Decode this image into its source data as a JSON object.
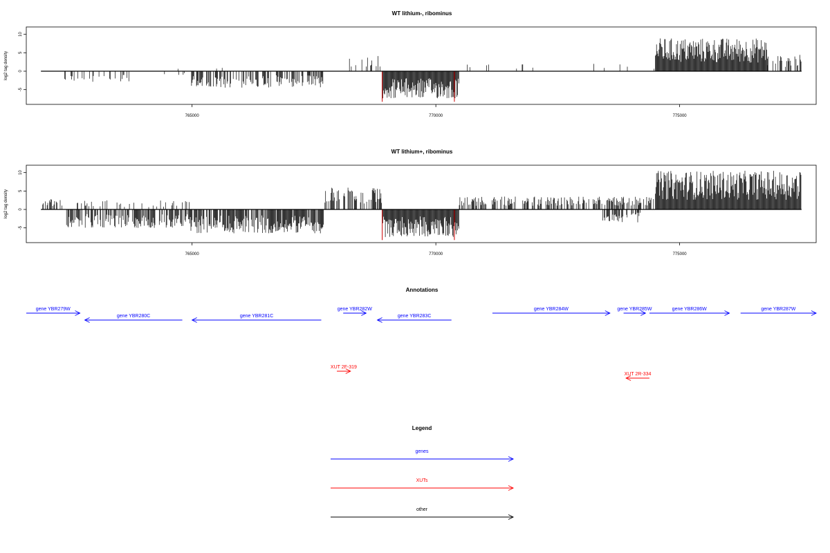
{
  "colors": {
    "gene": "#0000ff",
    "xut": "#ff0000",
    "other": "#000000",
    "bar": "#000000",
    "highlight": "#cc0000"
  },
  "chart_data": [
    {
      "type": "bar",
      "title": "WT lithium-, ribominus",
      "ylabel": "log2 tag density",
      "xlim": [
        761600,
        777800
      ],
      "ylim": [
        -9,
        12
      ],
      "yticks": [
        -5,
        0,
        5,
        10
      ],
      "xticks": [
        765000,
        770000,
        775000
      ],
      "xtick_labels": [
        "765000",
        "770000",
        "775000"
      ],
      "highlight_positions": [
        768900,
        770380
      ],
      "highlight_value": -8.3,
      "regions": [
        {
          "start": 761900,
          "end": 762400,
          "sign": 1,
          "max": 3.5,
          "density": 0.1
        },
        {
          "start": 762300,
          "end": 763800,
          "sign": -1,
          "max": 3.0,
          "density": 0.22
        },
        {
          "start": 763000,
          "end": 766000,
          "sign": 1,
          "max": 2.0,
          "density": 0.02
        },
        {
          "start": 764000,
          "end": 764900,
          "sign": -1,
          "max": 1.0,
          "density": 0.05
        },
        {
          "start": 764950,
          "end": 767700,
          "sign": -1,
          "max": 4.5,
          "density": 0.5
        },
        {
          "start": 768100,
          "end": 768900,
          "sign": 1,
          "max": 4.5,
          "density": 0.2
        },
        {
          "start": 768900,
          "end": 770480,
          "sign": -1,
          "max": 7.5,
          "density": 1.0
        },
        {
          "start": 770480,
          "end": 774500,
          "sign": 1,
          "max": 2.5,
          "density": 0.03
        },
        {
          "start": 774500,
          "end": 776800,
          "sign": 1,
          "max": 9.0,
          "density": 1.0
        },
        {
          "start": 776800,
          "end": 777500,
          "sign": 1,
          "max": 4.5,
          "density": 0.4
        }
      ]
    },
    {
      "type": "bar",
      "title": "WT lithium+, ribominus",
      "ylabel": "log2 tag density",
      "xlim": [
        761600,
        777800
      ],
      "ylim": [
        -9,
        12
      ],
      "yticks": [
        -5,
        0,
        5,
        10
      ],
      "xticks": [
        765000,
        770000,
        775000
      ],
      "xtick_labels": [
        "765000",
        "770000",
        "775000"
      ],
      "highlight_positions": [
        768900,
        770380
      ],
      "highlight_value": -8.3,
      "regions": [
        {
          "start": 761900,
          "end": 762400,
          "sign": 1,
          "max": 3.0,
          "density": 0.35
        },
        {
          "start": 762400,
          "end": 764950,
          "sign": 1,
          "max": 2.5,
          "density": 0.15
        },
        {
          "start": 762400,
          "end": 764950,
          "sign": -1,
          "max": 5.0,
          "density": 0.65
        },
        {
          "start": 764950,
          "end": 767700,
          "sign": -1,
          "max": 6.5,
          "density": 0.85
        },
        {
          "start": 767700,
          "end": 768900,
          "sign": 1,
          "max": 6.0,
          "density": 0.5
        },
        {
          "start": 768900,
          "end": 770480,
          "sign": -1,
          "max": 7.5,
          "density": 1.0
        },
        {
          "start": 770480,
          "end": 774500,
          "sign": 1,
          "max": 3.5,
          "density": 0.5
        },
        {
          "start": 773400,
          "end": 774200,
          "sign": -1,
          "max": 3.5,
          "density": 0.45
        },
        {
          "start": 774500,
          "end": 777500,
          "sign": 1,
          "max": 10.5,
          "density": 1.0
        }
      ]
    }
  ],
  "annotations": {
    "title": "Annotations",
    "items": [
      {
        "label": "gene YBR279W",
        "type": "gene",
        "start": 761600,
        "end": 762700,
        "row": 0
      },
      {
        "label": "gene YBR280C",
        "type": "gene",
        "start": 762800,
        "end": 764800,
        "row": 1
      },
      {
        "label": "gene YBR281C",
        "type": "gene",
        "start": 765000,
        "end": 767650,
        "row": 1
      },
      {
        "label": "gene YBR282W",
        "type": "gene",
        "start": 768100,
        "end": 768570,
        "row": 0
      },
      {
        "label": "gene YBR283C",
        "type": "gene",
        "start": 768800,
        "end": 770320,
        "row": 1
      },
      {
        "label": "gene YBR284W",
        "type": "gene",
        "start": 771160,
        "end": 773570,
        "row": 0
      },
      {
        "label": "gene YBR285W",
        "type": "gene",
        "start": 773850,
        "end": 774300,
        "row": 0
      },
      {
        "label": "gene YBR286W",
        "type": "gene",
        "start": 774380,
        "end": 776020,
        "row": 0
      },
      {
        "label": "gene YBR287W",
        "type": "gene",
        "start": 776250,
        "end": 777800,
        "row": 0
      },
      {
        "label": "XUT 2F-319",
        "type": "xut",
        "start": 767970,
        "end": 768250,
        "row": 2
      },
      {
        "label": "XUT 2R-334",
        "type": "xut",
        "start": 773900,
        "end": 774380,
        "row": 3
      }
    ]
  },
  "legend": {
    "title": "Legend",
    "items": [
      {
        "label": "genes",
        "type": "gene"
      },
      {
        "label": "XUTs",
        "type": "xut"
      },
      {
        "label": "other",
        "type": "other"
      }
    ]
  }
}
